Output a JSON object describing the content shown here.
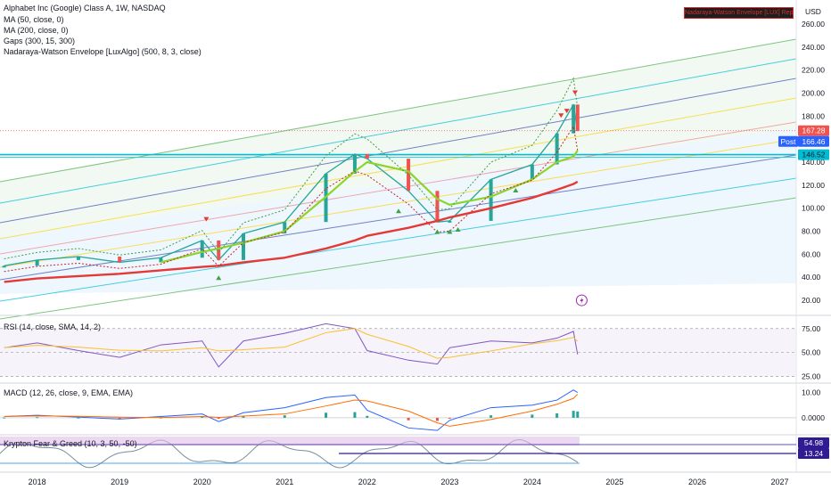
{
  "legend": {
    "main": "Alphabet Inc (Google) Class A, 1W, NASDAQ",
    "ma50": "MA (50, close, 0)",
    "ma200": "MA (200, close, 0)",
    "gaps": "Gaps (300, 15, 300)",
    "nwe": "Nadaraya-Watson Envelope [LuxAlgo] (500, 8, 3, close)",
    "rsi": "RSI (14, close, SMA, 14, 2)",
    "macd": "MACD (12, 26, close, 9, EMA, EMA)",
    "krypton": "Krypton Fear & Greed (10, 3, 50, -50)"
  },
  "warning_badge": "Nadaraya-Watson Envelope [LUX] Repaints",
  "currency": "USD",
  "price_labels": {
    "last": "167.28",
    "post_label": "Post",
    "post_value": "166.46",
    "level": "146.52"
  },
  "krypton_labels": {
    "upper": "54.98",
    "lower": "13.24"
  },
  "chart_data": [
    {
      "type": "line",
      "title": "Alphabet Inc (Google) Class A, 1W, NASDAQ",
      "x": [
        2017.6,
        2018.0,
        2018.5,
        2019.0,
        2019.5,
        2020.0,
        2020.2,
        2020.5,
        2021.0,
        2021.5,
        2021.85,
        2022.0,
        2022.5,
        2022.85,
        2023.0,
        2023.5,
        2024.0,
        2024.3,
        2024.5,
        2024.55
      ],
      "x_ticks": [
        "2018",
        "2019",
        "2020",
        "2021",
        "2022",
        "2023",
        "2024",
        "2025",
        "2026",
        "2027"
      ],
      "y_ticks": [
        20,
        40,
        60,
        80,
        100,
        120,
        140,
        160,
        180,
        200,
        220,
        240,
        260
      ],
      "y_tick_labels": [
        "20.00",
        "40.00",
        "60.00",
        "80.00",
        "100.00",
        "120.00",
        "140.00",
        "160.00",
        "180.00",
        "200.00",
        "220.00",
        "240.00",
        "260.00"
      ],
      "ylim": [
        10,
        270
      ],
      "xlim": [
        2017.55,
        2027.2
      ],
      "series": [
        {
          "name": "Alphabet Inc (Google) Class A",
          "color": "#26a69a",
          "values": [
            50,
            55,
            58,
            53,
            57,
            72,
            55,
            78,
            88,
            130,
            147,
            143,
            115,
            88,
            89,
            125,
            138,
            165,
            190,
            167
          ]
        },
        {
          "name": "MA (50, close, 0)",
          "color": "#8bd52b",
          "values": [
            null,
            null,
            null,
            null,
            53,
            62,
            65,
            70,
            80,
            110,
            132,
            140,
            132,
            108,
            103,
            110,
            125,
            140,
            145,
            150
          ]
        },
        {
          "name": "MA (200, close, 0)",
          "color": "#e53935",
          "values": [
            36,
            39,
            41,
            43,
            46,
            49,
            50,
            53,
            57,
            65,
            72,
            76,
            83,
            89,
            92,
            100,
            109,
            116,
            121,
            123
          ]
        }
      ],
      "last_price": 167.28,
      "post_price": 166.46,
      "level_line": 146.52,
      "grid": false
    },
    {
      "type": "line",
      "title": "RSI (14, close, SMA, 14, 2)",
      "y_ticks": [
        25,
        50,
        75
      ],
      "y_tick_labels": [
        "25.00",
        "50.00",
        "75.00"
      ],
      "ylim": [
        20,
        85
      ],
      "x": [
        2017.6,
        2018.0,
        2018.5,
        2019.0,
        2019.5,
        2020.0,
        2020.2,
        2020.5,
        2021.0,
        2021.5,
        2021.85,
        2022.0,
        2022.5,
        2022.85,
        2023.0,
        2023.5,
        2024.0,
        2024.3,
        2024.5,
        2024.55
      ],
      "values": [
        55,
        60,
        52,
        45,
        58,
        62,
        35,
        62,
        70,
        80,
        75,
        52,
        42,
        38,
        55,
        62,
        60,
        65,
        72,
        48
      ]
    },
    {
      "type": "line",
      "title": "MACD (12, 26, close, 9, EMA, EMA)",
      "y_ticks": [
        0,
        10
      ],
      "y_tick_labels": [
        "0.0000",
        "10.00"
      ],
      "ylim": [
        -6,
        13
      ],
      "x": [
        2017.6,
        2018.0,
        2018.5,
        2019.0,
        2019.5,
        2020.0,
        2020.2,
        2020.5,
        2021.0,
        2021.5,
        2021.85,
        2022.0,
        2022.5,
        2022.85,
        2023.0,
        2023.5,
        2024.0,
        2024.3,
        2024.5,
        2024.55
      ],
      "values": [
        0.5,
        1,
        0.3,
        -0.5,
        0.5,
        1.5,
        -1.5,
        2,
        4,
        8,
        9,
        3,
        -4,
        -5,
        -1,
        4,
        5,
        7,
        11,
        10
      ]
    }
  ]
}
